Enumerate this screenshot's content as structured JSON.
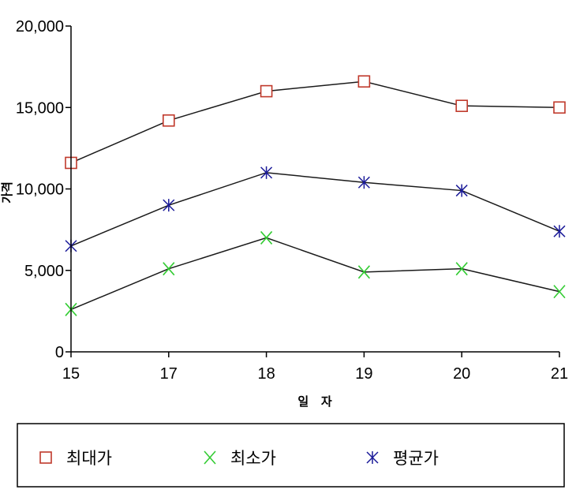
{
  "chart_data": {
    "type": "line",
    "x": [
      "15",
      "17",
      "18",
      "19",
      "20",
      "21"
    ],
    "xlabel": "일   자",
    "ylabel": "가격",
    "ylim": [
      0,
      20000
    ],
    "yticks": [
      "0",
      "5,000",
      "10,000",
      "15,000",
      "20,000"
    ],
    "grid": false,
    "legend_position": "bottom",
    "series": [
      {
        "name": "최대가",
        "marker": "square",
        "color": "#c0392b",
        "values": [
          11600,
          14200,
          16000,
          16600,
          15100,
          15000
        ]
      },
      {
        "name": "최소가",
        "marker": "x",
        "color": "#33cc33",
        "values": [
          2600,
          5100,
          7000,
          4900,
          5100,
          3700
        ]
      },
      {
        "name": "평균가",
        "marker": "asterisk",
        "color": "#1a1a99",
        "values": [
          6500,
          9000,
          11000,
          10400,
          9900,
          7400
        ]
      }
    ],
    "line_color": "#1a1a1a"
  }
}
